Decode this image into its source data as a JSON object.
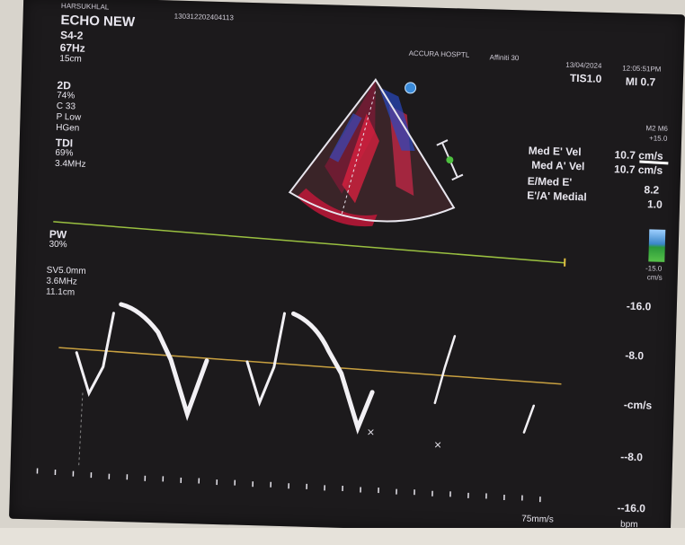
{
  "patient": {
    "name": "HARSUKHLAL",
    "id": "130312202404113"
  },
  "exam": {
    "title": "ECHO NEW",
    "probe": "S4-2",
    "frame_rate": "67Hz",
    "depth": "15cm"
  },
  "hospital": {
    "name": "ACCURA HOSPTL",
    "system": "Affiniti 30"
  },
  "datetime": {
    "date": "13/04/2024",
    "time": "12:05:51PM"
  },
  "indices": {
    "tis": "TIS1.0",
    "mi": "MI 0.7"
  },
  "mode_2d": {
    "label": "2D",
    "gain": "74%",
    "compress": "C 33",
    "power": "P Low",
    "res": "HGen"
  },
  "mode_tdi": {
    "label": "TDI",
    "gain": "69%",
    "freq": "3.4MHz"
  },
  "mode_pw": {
    "label": "PW",
    "gain": "30%",
    "sample_volume": "SV5.0mm",
    "freq": "3.6MHz",
    "depth": "11.1cm"
  },
  "scale": {
    "m2m6": "M2 M6",
    "top": "+15.0",
    "bottom": "-15.0",
    "unit": "cm/s"
  },
  "measurements": [
    {
      "label": "Med E' Vel",
      "value": "10.7 cm/s"
    },
    {
      "label": "Med A' Vel",
      "value": "10.7 cm/s"
    },
    {
      "label": "E/Med E'",
      "value": "8.2"
    },
    {
      "label": "E'/A' Medial",
      "value": "1.0"
    }
  ],
  "doppler_axis": [
    "-16.0",
    "-8.0",
    "-cm/s",
    "--8.0",
    "--16.0"
  ],
  "sweep_speed": "75mm/s",
  "heart_rate_unit": "bpm",
  "colors": {
    "screen": "#1c1a1c",
    "text": "#e8e6ee",
    "baseline": "#c8a040",
    "gate_line": "#9ac040",
    "sector_border": "#e8e6ee"
  }
}
